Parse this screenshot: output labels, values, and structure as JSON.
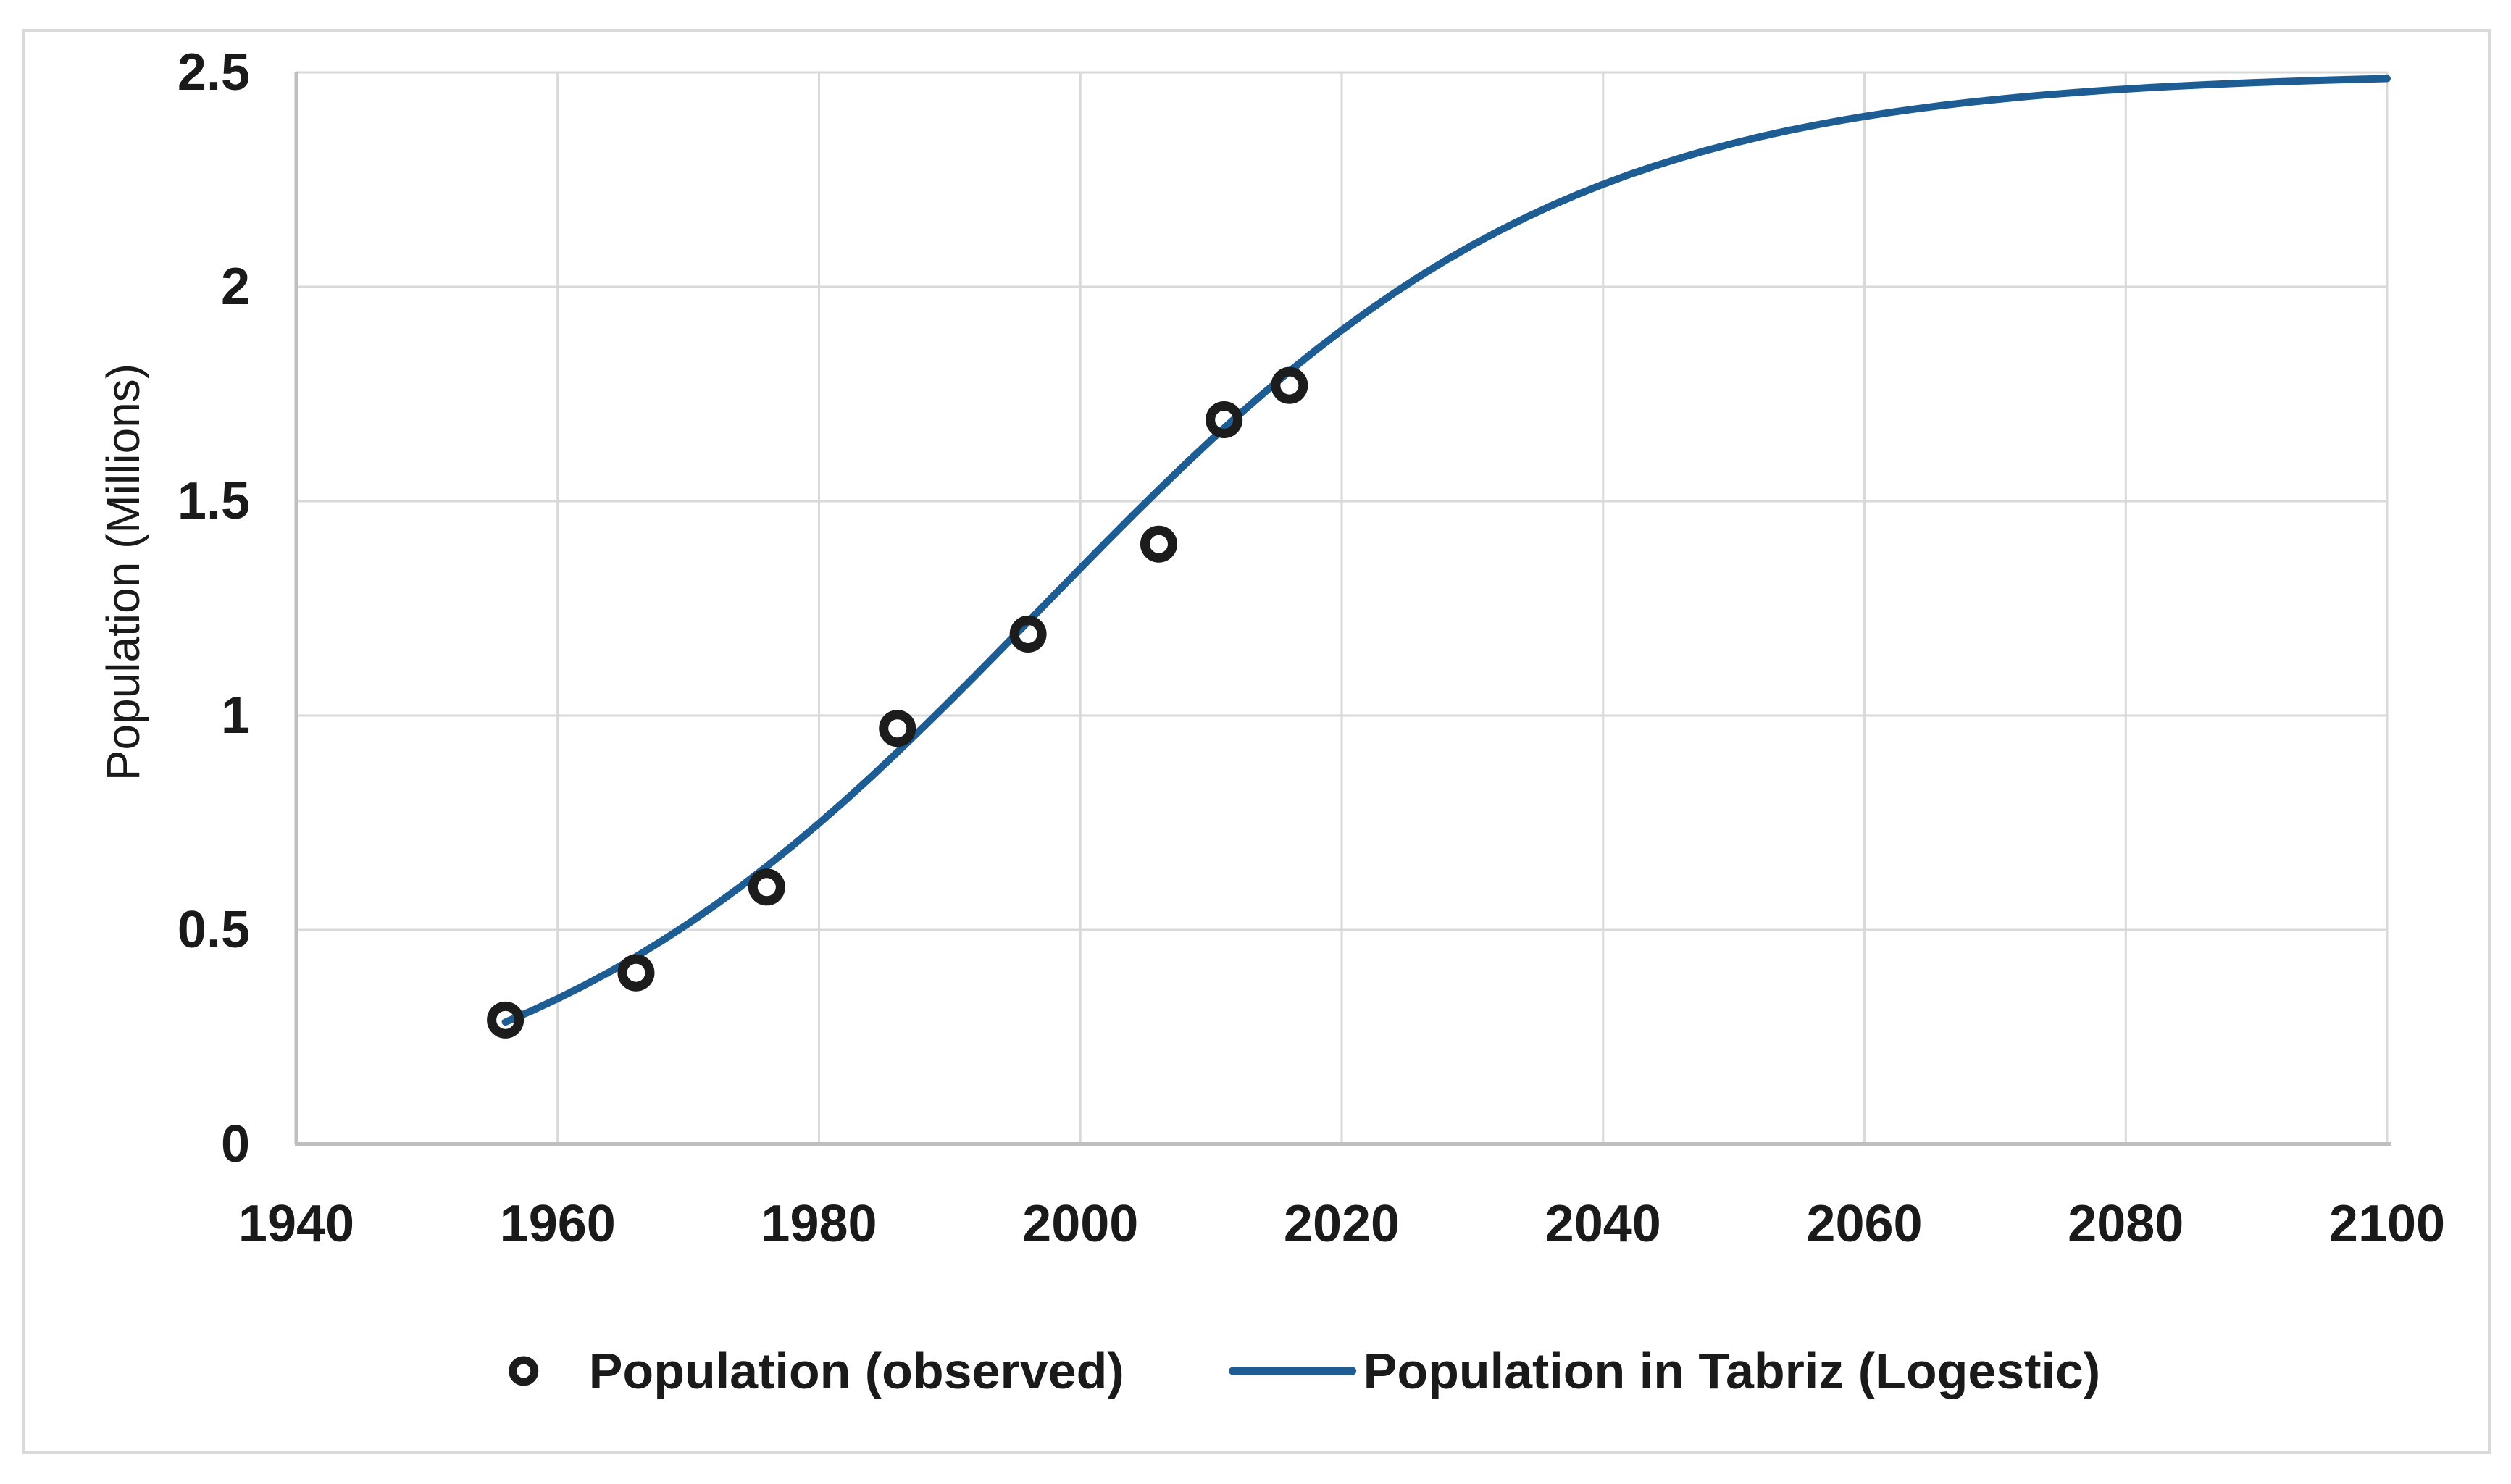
{
  "chart_data": {
    "type": "line",
    "title": "",
    "xlabel": "",
    "ylabel": "Population (Millions)",
    "xlim": [
      1940,
      2100
    ],
    "ylim": [
      0,
      2.5
    ],
    "x_ticks": [
      1940,
      1960,
      1980,
      2000,
      2020,
      2040,
      2060,
      2080,
      2100
    ],
    "y_ticks": [
      0,
      0.5,
      1,
      1.5,
      2,
      2.5
    ],
    "y_tick_labels": [
      "0",
      "0.5",
      "1",
      "1.5",
      "2",
      "2.5"
    ],
    "grid": true,
    "legend_position": "bottom-center",
    "series": [
      {
        "name": "Population (observed)",
        "type": "scatter",
        "marker": "open-circle",
        "color": "#1c1c1c",
        "x": [
          1956,
          1966,
          1976,
          1986,
          1996,
          2006,
          2011,
          2016
        ],
        "y": [
          0.29,
          0.4,
          0.6,
          0.97,
          1.19,
          1.4,
          1.69,
          1.77
        ]
      },
      {
        "name": "Population in Tabriz (Logestic)",
        "type": "line",
        "color": "#1e5c94",
        "model": {
          "form": "logistic",
          "K": 2.5,
          "r": 0.05,
          "t0": 1997
        },
        "x_range": [
          1956,
          2100
        ],
        "curve_readings": {
          "1956": 0.29,
          "1980": 0.76,
          "2000": 1.29,
          "2020": 1.85,
          "2040": 2.24,
          "2060": 2.39,
          "2080": 2.46,
          "2100": 2.47
        }
      }
    ],
    "colors": {
      "gridline": "#d9d9d9",
      "axis_line": "#bfbfbf",
      "text": "#1a1a1a",
      "chart_border": "#d9d9d9",
      "background": "#ffffff"
    }
  }
}
